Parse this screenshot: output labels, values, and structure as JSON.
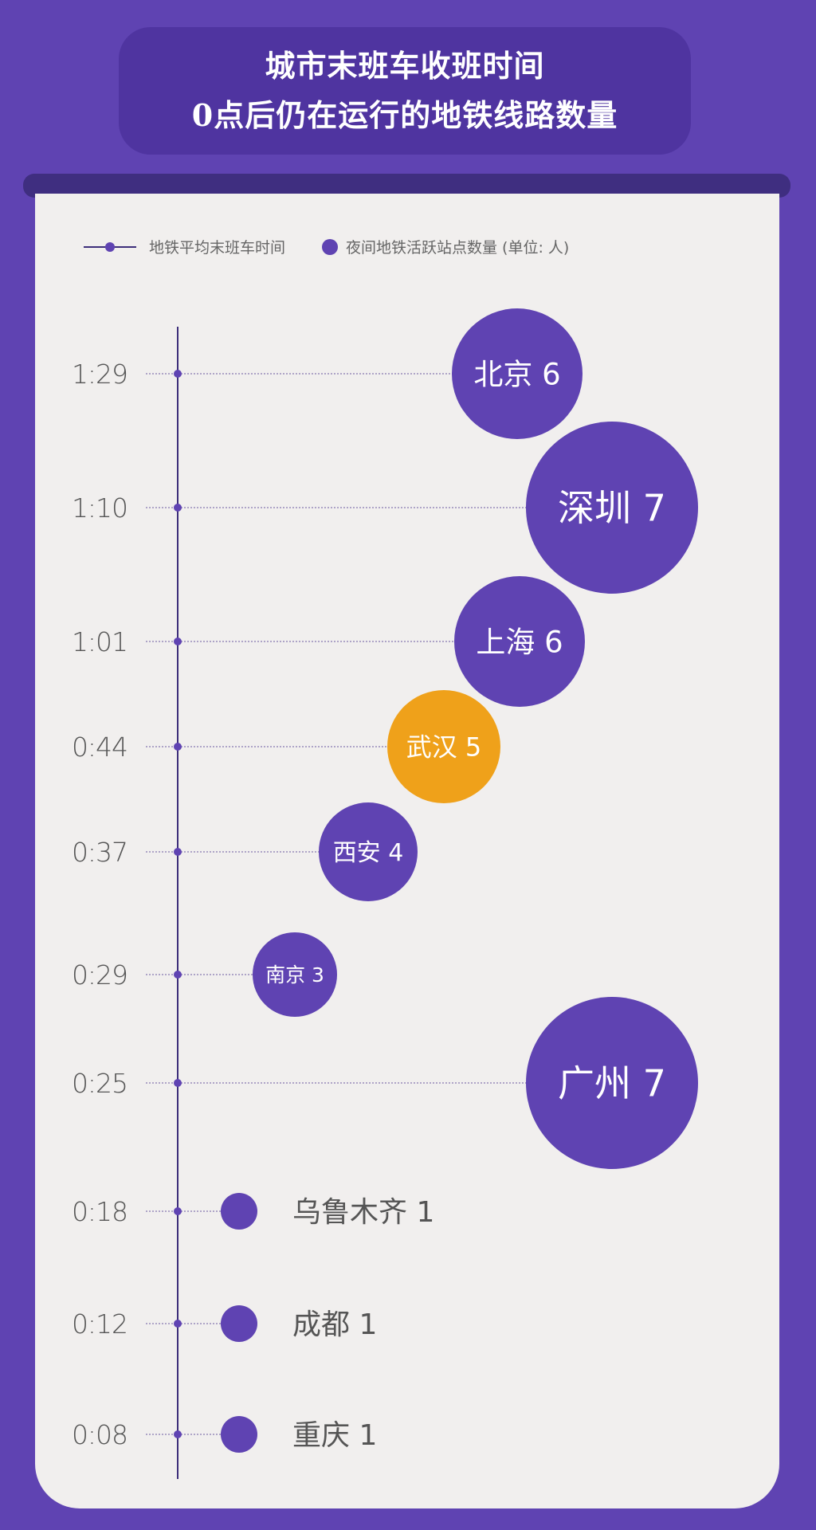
{
  "title": {
    "line1": "城市末班车收班时间",
    "line2": "0点后仍在运行的地铁线路数量"
  },
  "legend": {
    "line_label": "地铁平均末班车时间",
    "bubble_label": "夜间地铁活跃站点数量 (单位: 人)"
  },
  "colors": {
    "background": "#5f43b2",
    "bubble": "#5f43b2",
    "highlight": "#efa11a",
    "axis": "#3d2e7a"
  },
  "chart_data": {
    "type": "bubble",
    "y_label_format": "h:mm",
    "points": [
      {
        "time": "1:29",
        "city": "北京",
        "lines": 6,
        "label": "北京 6"
      },
      {
        "time": "1:10",
        "city": "深圳",
        "lines": 7,
        "label": "深圳 7"
      },
      {
        "time": "1:01",
        "city": "上海",
        "lines": 6,
        "label": "上海 6"
      },
      {
        "time": "0:44",
        "city": "武汉",
        "lines": 5,
        "label": "武汉 5",
        "highlight": true
      },
      {
        "time": "0:37",
        "city": "西安",
        "lines": 4,
        "label": "西安 4"
      },
      {
        "time": "0:29",
        "city": "南京",
        "lines": 3,
        "label": "南京 3"
      },
      {
        "time": "0:25",
        "city": "广州",
        "lines": 7,
        "label": "广州 7"
      },
      {
        "time": "0:18",
        "city": "乌鲁木齐",
        "lines": 1,
        "label": "乌鲁木齐 1"
      },
      {
        "time": "0:12",
        "city": "成都",
        "lines": 1,
        "label": "成都 1"
      },
      {
        "time": "0:08",
        "city": "重庆",
        "lines": 1,
        "label": "重庆 1"
      }
    ]
  }
}
